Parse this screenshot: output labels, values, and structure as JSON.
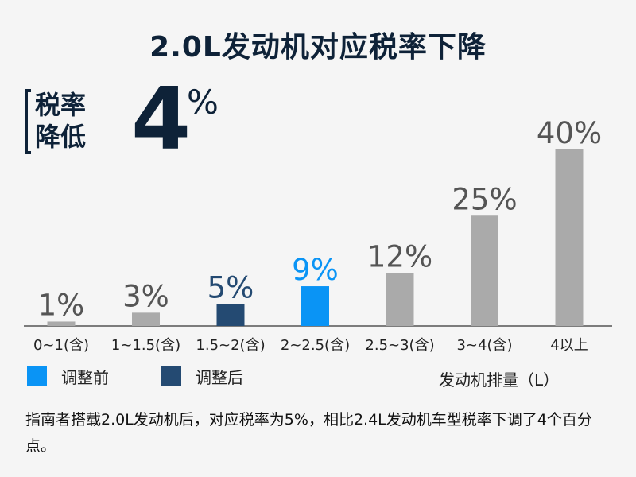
{
  "title": "2.0L发动机对应税率下降",
  "callout": {
    "label_line1": "税率",
    "label_line2": "降低",
    "value": "4",
    "unit": "%"
  },
  "legend": {
    "before_label": "调整前",
    "after_label": "调整后",
    "before_color": "#0a94f5",
    "after_color": "#244a72"
  },
  "note": "指南者搭载2.0L发动机后，对应税率为5%，相比2.4L发动机车型税率下调了4个百分点。",
  "colors": {
    "default_bar": "#aaaaaa",
    "before": "#0a94f5",
    "after": "#244a72",
    "axis": "#555555",
    "label_default": "#555555",
    "title": "#0e2238"
  },
  "chart_data": {
    "type": "bar",
    "title": "2.0L发动机对应税率下降",
    "xlabel": "发动机排量（L）",
    "ylabel": "",
    "categories": [
      "0~1(含)",
      "1~1.5(含)",
      "1.5~2(含)",
      "2~2.5(含)",
      "2.5~3(含)",
      "3~4(含)",
      "4以上"
    ],
    "values": [
      1,
      3,
      5,
      9,
      12,
      25,
      40
    ],
    "value_labels": [
      "1%",
      "3%",
      "5%",
      "9%",
      "12%",
      "25%",
      "40%"
    ],
    "highlight": {
      "1.5~2(含)": "after",
      "2~2.5(含)": "before"
    },
    "grid": false,
    "legend_position": "bottom-left"
  }
}
